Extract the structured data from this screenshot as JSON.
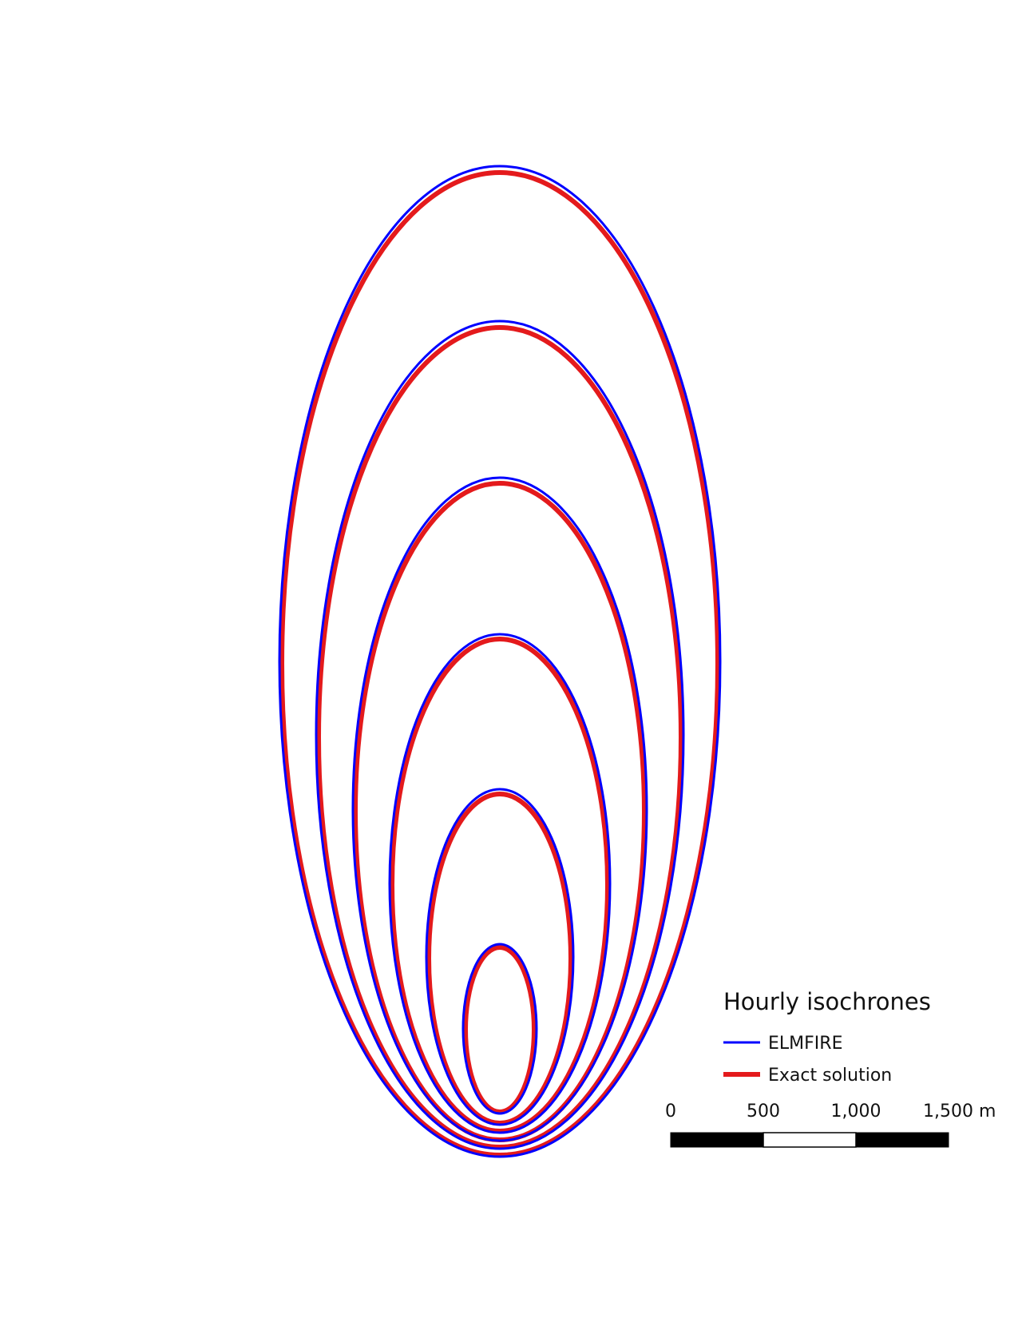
{
  "legend": {
    "title": "Hourly isochrones",
    "items": [
      {
        "label": "ELMFIRE",
        "color": "#0000ff"
      },
      {
        "label": "Exact solution",
        "color": "#e41a1c"
      }
    ]
  },
  "scale_bar": {
    "labels": [
      "0",
      "500",
      "1,000",
      "1,500 m"
    ],
    "segment_colors": [
      "#000000",
      "#ffffff",
      "#000000"
    ]
  },
  "isochrones": {
    "count": 6,
    "elmfire_color": "#0000ff",
    "exact_color": "#e41a1c"
  }
}
